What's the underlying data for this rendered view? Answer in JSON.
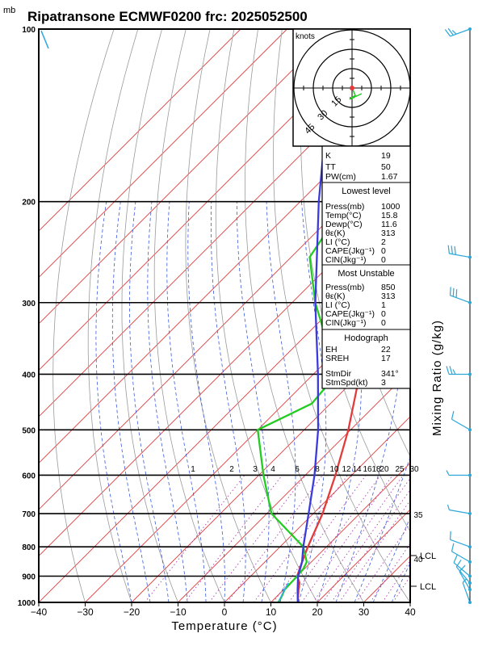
{
  "header": {
    "unit_mb": "mb",
    "title": "Ripatransone ECMWF0200 frc: 2025052500"
  },
  "chart_data": {
    "type": "line",
    "title": "Ripatransone ECMWF0200 frc: 2025052500",
    "xlabel": "Temperature (°C)",
    "ylabel": "Mixing Ratio (g/kg)",
    "x_ticks": [
      -40,
      -30,
      -20,
      -10,
      0,
      10,
      20,
      30,
      40
    ],
    "y_ticks": [
      100,
      200,
      300,
      400,
      500,
      600,
      700,
      800,
      900,
      1000
    ],
    "xlim": [
      -40,
      40
    ],
    "ylim": [
      1000,
      100
    ],
    "y_scale": "log",
    "mixing_ratio_labels": [
      "1",
      "2",
      "3",
      "4",
      "6",
      "8",
      "10",
      "12",
      "14",
      "16",
      "18",
      "20",
      "25",
      "30",
      "35",
      "40"
    ],
    "lcl_labels": [
      "LCL",
      "LCL"
    ],
    "series": [
      {
        "name": "",
        "color": "#e23b3b",
        "points": [
          [
            1000,
            15.8
          ],
          [
            950,
            13.2
          ],
          [
            925,
            12.0
          ],
          [
            900,
            10.0
          ],
          [
            850,
            8.0
          ],
          [
            800,
            6.0
          ],
          [
            700,
            2.0
          ],
          [
            600,
            -3.5
          ],
          [
            500,
            -10.5
          ],
          [
            400,
            -20.0
          ],
          [
            350,
            -25.5
          ],
          [
            300,
            -34.5
          ],
          [
            250,
            -44.0
          ],
          [
            200,
            -45.0
          ],
          [
            150,
            -44.0
          ],
          [
            100,
            -42.0
          ]
        ]
      },
      {
        "name": "",
        "color": "#22cc22",
        "points": [
          [
            1000,
            11.6
          ],
          [
            975,
            11.0
          ],
          [
            950,
            10.2
          ],
          [
            900,
            10.0
          ],
          [
            875,
            9.8
          ],
          [
            850,
            9.0
          ],
          [
            800,
            5.0
          ],
          [
            700,
            -9.0
          ],
          [
            600,
            -19.0
          ],
          [
            500,
            -30.0
          ],
          [
            450,
            -24.0
          ],
          [
            400,
            -25.0
          ],
          [
            300,
            -45.0
          ],
          [
            250,
            -56.0
          ],
          [
            200,
            -60.0
          ],
          [
            150,
            -66.0
          ],
          [
            100,
            -73.0
          ]
        ]
      },
      {
        "name": "",
        "color": "#3b3bdd",
        "points": [
          [
            1000,
            15.8
          ],
          [
            950,
            13.0
          ],
          [
            900,
            10.2
          ],
          [
            850,
            8.0
          ],
          [
            800,
            5.0
          ],
          [
            700,
            -1.0
          ],
          [
            600,
            -8.0
          ],
          [
            500,
            -17.0
          ],
          [
            400,
            -29.0
          ],
          [
            300,
            -45.0
          ],
          [
            200,
            -66.0
          ],
          [
            150,
            -80.0
          ],
          [
            110,
            -95.0
          ]
        ]
      }
    ],
    "wind_barbs": [
      {
        "p": 1000,
        "dir": 340,
        "spd": 5
      },
      {
        "p": 950,
        "dir": 330,
        "spd": 8
      },
      {
        "p": 925,
        "dir": 320,
        "spd": 10
      },
      {
        "p": 900,
        "dir": 310,
        "spd": 12
      },
      {
        "p": 850,
        "dir": 300,
        "spd": 10
      },
      {
        "p": 800,
        "dir": 290,
        "spd": 10
      },
      {
        "p": 700,
        "dir": 280,
        "spd": 5
      },
      {
        "p": 600,
        "dir": 270,
        "spd": 5
      },
      {
        "p": 500,
        "dir": 300,
        "spd": 10
      },
      {
        "p": 400,
        "dir": 270,
        "spd": 25
      },
      {
        "p": 300,
        "dir": 290,
        "spd": 30
      },
      {
        "p": 250,
        "dir": 280,
        "spd": 30
      },
      {
        "p": 100,
        "dir": 250,
        "spd": 25
      }
    ],
    "hodograph_unit": "knots",
    "hodograph_rings": [
      "15",
      "30",
      "45"
    ]
  },
  "indices": {
    "k": {
      "label": "K",
      "value": "19"
    },
    "tt": {
      "label": "TT",
      "value": "50"
    },
    "pw": {
      "label": "PW(cm)",
      "value": "1.67"
    },
    "lowest_title": "Lowest level",
    "lowest": [
      {
        "label": "Press(mb)",
        "value": "1000"
      },
      {
        "label": "Temp(°C)",
        "value": "15.8"
      },
      {
        "label": "Dewp(°C)",
        "value": "11.6"
      },
      {
        "label": "θε(K)",
        "value": "313"
      },
      {
        "label": "LI (°C)",
        "value": "2"
      },
      {
        "label": "CAPE(Jkg⁻¹)",
        "value": "0"
      },
      {
        "label": "CIN(Jkg⁻¹)",
        "value": "0"
      }
    ],
    "unstable_title": "Most Unstable",
    "unstable": [
      {
        "label": "Press(mb)",
        "value": "850"
      },
      {
        "label": "θε(K)",
        "value": "313"
      },
      {
        "label": "LI (°C)",
        "value": "1"
      },
      {
        "label": "CAPE(Jkg⁻¹)",
        "value": "0"
      },
      {
        "label": "CIN(Jkg⁻¹)",
        "value": "0"
      }
    ],
    "hodo_title": "Hodograph",
    "hodo": [
      {
        "label": "EH",
        "value": "22"
      },
      {
        "label": "SREH",
        "value": "17"
      },
      {
        "label": "StmDir",
        "value": "341°"
      },
      {
        "label": "StmSpd(kt)",
        "value": "3"
      }
    ]
  }
}
